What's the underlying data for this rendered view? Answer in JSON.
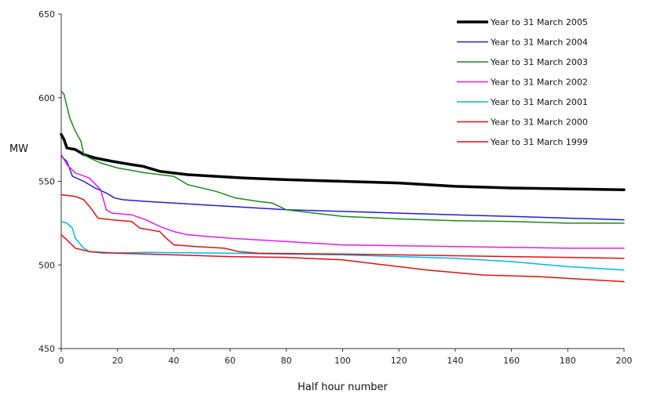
{
  "chart_data": {
    "type": "line",
    "title": "",
    "xlabel": "Half hour number",
    "ylabel": "MW",
    "xlim": [
      0,
      200
    ],
    "ylim": [
      450,
      650
    ],
    "xticks": [
      0,
      20,
      40,
      60,
      80,
      100,
      120,
      140,
      160,
      180,
      200
    ],
    "yticks": [
      450,
      500,
      550,
      600,
      650
    ],
    "grid": false,
    "legend_position": "top-right",
    "series": [
      {
        "name": "Year to 31 March 2005",
        "color": "#000000",
        "width": 3.5,
        "points": [
          [
            0,
            578
          ],
          [
            1,
            575
          ],
          [
            2,
            570
          ],
          [
            5,
            569
          ],
          [
            8,
            566
          ],
          [
            12,
            564
          ],
          [
            18,
            562
          ],
          [
            25,
            560
          ],
          [
            29,
            559
          ],
          [
            35,
            556
          ],
          [
            45,
            554
          ],
          [
            55,
            553
          ],
          [
            65,
            552
          ],
          [
            80,
            551
          ],
          [
            100,
            550
          ],
          [
            120,
            549
          ],
          [
            140,
            547
          ],
          [
            160,
            546
          ],
          [
            180,
            545.5
          ],
          [
            200,
            545
          ]
        ]
      },
      {
        "name": "Year to 31 March 2004",
        "color": "#1f1fd0",
        "width": 1.5,
        "points": [
          [
            0,
            565
          ],
          [
            2,
            562
          ],
          [
            4,
            553
          ],
          [
            8,
            550
          ],
          [
            12,
            546
          ],
          [
            16,
            543
          ],
          [
            19,
            540
          ],
          [
            22,
            539
          ],
          [
            30,
            538
          ],
          [
            40,
            537
          ],
          [
            60,
            535
          ],
          [
            80,
            533
          ],
          [
            100,
            532
          ],
          [
            120,
            531
          ],
          [
            140,
            530
          ],
          [
            160,
            529
          ],
          [
            180,
            528
          ],
          [
            200,
            527
          ]
        ]
      },
      {
        "name": "Year to 31 March 2003",
        "color": "#1a8a1a",
        "width": 1.5,
        "points": [
          [
            0,
            604
          ],
          [
            1,
            602
          ],
          [
            2,
            595
          ],
          [
            3,
            588
          ],
          [
            5,
            580
          ],
          [
            7,
            574
          ],
          [
            8,
            566
          ],
          [
            10,
            564
          ],
          [
            14,
            561
          ],
          [
            20,
            558
          ],
          [
            30,
            555
          ],
          [
            40,
            553
          ],
          [
            45,
            548
          ],
          [
            55,
            544
          ],
          [
            62,
            540
          ],
          [
            70,
            538
          ],
          [
            75,
            537
          ],
          [
            80,
            533
          ],
          [
            90,
            531
          ],
          [
            100,
            529
          ],
          [
            120,
            527.5
          ],
          [
            140,
            526.5
          ],
          [
            160,
            526
          ],
          [
            180,
            525
          ],
          [
            200,
            525
          ]
        ]
      },
      {
        "name": "Year to 31 March 2002",
        "color": "#e81ae8",
        "width": 1.5,
        "points": [
          [
            0,
            566
          ],
          [
            2,
            560
          ],
          [
            5,
            555
          ],
          [
            10,
            552
          ],
          [
            14,
            545
          ],
          [
            16,
            533
          ],
          [
            18,
            531
          ],
          [
            25,
            530
          ],
          [
            30,
            527
          ],
          [
            35,
            523
          ],
          [
            40,
            520
          ],
          [
            45,
            518
          ],
          [
            60,
            516
          ],
          [
            80,
            514
          ],
          [
            100,
            512
          ],
          [
            120,
            511.5
          ],
          [
            140,
            511
          ],
          [
            160,
            510.5
          ],
          [
            180,
            510
          ],
          [
            200,
            510
          ]
        ]
      },
      {
        "name": "Year to 31 March 2001",
        "color": "#00b8f0",
        "width": 1.5,
        "points": [
          [
            0,
            526
          ],
          [
            2,
            525
          ],
          [
            4,
            522
          ],
          [
            5,
            516
          ],
          [
            8,
            510
          ],
          [
            10,
            508
          ],
          [
            15,
            507
          ],
          [
            30,
            507.5
          ],
          [
            60,
            507
          ],
          [
            80,
            506.5
          ],
          [
            100,
            506
          ],
          [
            120,
            505
          ],
          [
            140,
            504
          ],
          [
            160,
            502
          ],
          [
            180,
            499
          ],
          [
            200,
            497
          ]
        ]
      },
      {
        "name": "Year to 31 March 2000",
        "color": "#e01010",
        "width": 1.5,
        "points": [
          [
            0,
            542
          ],
          [
            5,
            541
          ],
          [
            8,
            539
          ],
          [
            11,
            533
          ],
          [
            13,
            528
          ],
          [
            18,
            527
          ],
          [
            25,
            526
          ],
          [
            28,
            522
          ],
          [
            35,
            520
          ],
          [
            38,
            515
          ],
          [
            40,
            512
          ],
          [
            48,
            511
          ],
          [
            58,
            510
          ],
          [
            63,
            508
          ],
          [
            70,
            507
          ],
          [
            100,
            506.5
          ],
          [
            120,
            506
          ],
          [
            140,
            505.5
          ],
          [
            160,
            505
          ],
          [
            180,
            504.5
          ],
          [
            200,
            504
          ]
        ]
      },
      {
        "name": "Year to 31 March 1999",
        "color": "#e01010",
        "width": 1.5,
        "points": [
          [
            0,
            518
          ],
          [
            2,
            515
          ],
          [
            5,
            510
          ],
          [
            10,
            508
          ],
          [
            20,
            507
          ],
          [
            40,
            506
          ],
          [
            60,
            505
          ],
          [
            80,
            504.5
          ],
          [
            100,
            503
          ],
          [
            110,
            501
          ],
          [
            130,
            497
          ],
          [
            150,
            494
          ],
          [
            170,
            493
          ],
          [
            190,
            491
          ],
          [
            200,
            490
          ]
        ]
      }
    ]
  }
}
